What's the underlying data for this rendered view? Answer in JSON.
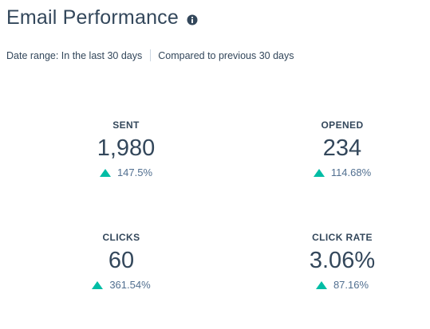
{
  "header": {
    "title": "Email Performance",
    "info_icon": "info-icon"
  },
  "filters": {
    "date_range": "Date range: In the last 30 days",
    "comparison": "Compared to previous 30 days"
  },
  "colors": {
    "text": "#33475b",
    "trend_up": "#00bda5",
    "divider": "#cbd6e2"
  },
  "metrics": [
    {
      "label": "SENT",
      "value": "1,980",
      "change": "147.5%",
      "trend": "up"
    },
    {
      "label": "OPENED",
      "value": "234",
      "change": "114.68%",
      "trend": "up"
    },
    {
      "label": "CLICKS",
      "value": "60",
      "change": "361.54%",
      "trend": "up"
    },
    {
      "label": "CLICK RATE",
      "value": "3.06%",
      "change": "87.16%",
      "trend": "up"
    }
  ]
}
